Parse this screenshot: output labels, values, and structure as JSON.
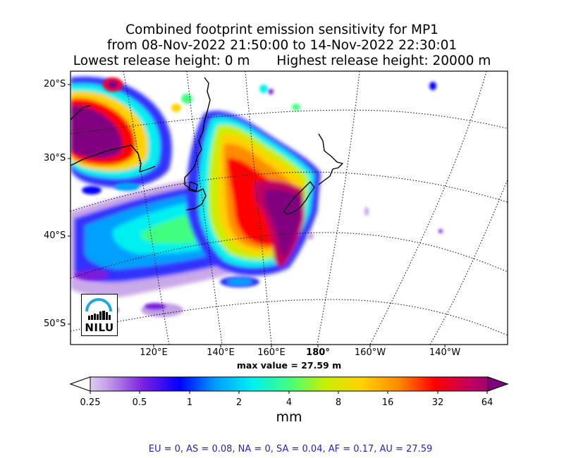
{
  "title": {
    "line1": "Combined footprint emission sensitivity for MP1",
    "line2": "from 08-Nov-2022 21:50:00 to 14-Nov-2022 22:30:01",
    "lowest": "Lowest release height: 0 m",
    "highest": "Highest release height: 20000 m"
  },
  "lat_labels": [
    "20°S",
    "30°S",
    "40°S",
    "50°S"
  ],
  "lon_labels": [
    "120°E",
    "140°E",
    "160°E",
    "180°",
    "160°W",
    "140°W"
  ],
  "max_value": "max value = 27.59 m",
  "colorbar": {
    "ticks": [
      "0.25",
      "0.5",
      "1",
      "2",
      "4",
      "8",
      "16",
      "32",
      "64"
    ],
    "unit": "mm",
    "scale": "log",
    "colors": [
      "#ffffff",
      "#c4a0e6",
      "#7a1fe0",
      "#0000ff",
      "#00a0ff",
      "#00f0f0",
      "#40ff80",
      "#c8f000",
      "#ffd200",
      "#ff8c00",
      "#ff0000",
      "#c00060",
      "#800080"
    ]
  },
  "stats": "EU = 0,  AS = 0.08,  NA = 0,  SA = 0.04,  AF = 0.17,  AU = 27.59",
  "logo": {
    "text": "NILU"
  }
}
